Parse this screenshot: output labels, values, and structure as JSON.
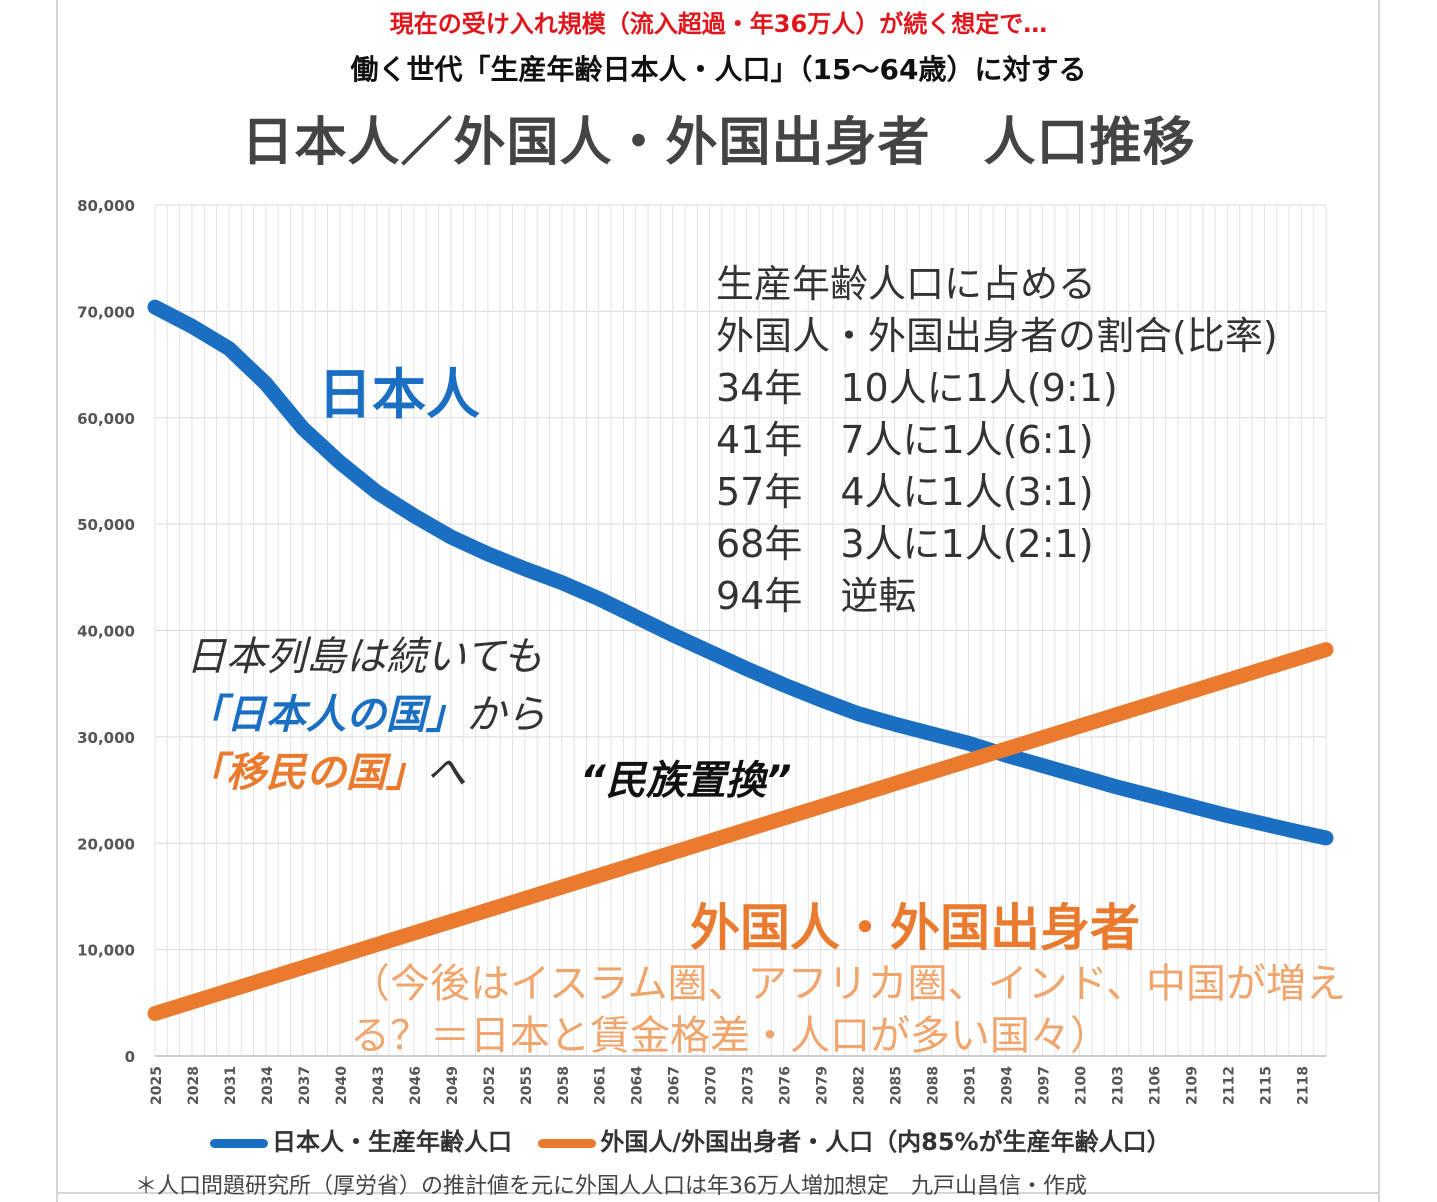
{
  "title_line1": "現在の受け入れ規模（流入超過・年36万人）が続く想定で…",
  "title_line2": "働く世代「生産年齢日本人・人口」（15〜64歳）に対する",
  "title_main": "日本人／外国人・外国出身者　人口推移",
  "annotations": {
    "japanese_label": "日本人",
    "foreign_label": "外国人・外国出身者",
    "foreign_note": "（今後はイスラム圏、アフリカ圏、インド、中国が増える？＝日本と賃金格差・人口が多い国々）",
    "ratio_lines": [
      "生産年齢人口に占める",
      "外国人・外国出身者の割合(比率)",
      "34年　10人に1人(9:1)",
      "41年　7人に1人(6:1)",
      "57年　4人に1人(3:1)",
      "68年　3人に1人(2:1)",
      "94年　逆転"
    ],
    "italic_line1": "日本列島は続いても",
    "italic_line2_quote": "「日本人の国」",
    "italic_line2_rest": "から",
    "italic_line3_quote": "「移民の国」",
    "italic_line3_rest": "へ",
    "replacement": "“民族置換”"
  },
  "footnote": "＊人口問題研究所（厚労省）の推計値を元に外国人人口は年36万人増加想定　九戸山昌信・作成",
  "colors": {
    "japanese": "#1b6fc2",
    "foreign": "#e97a2e",
    "title_red": "#e0161c"
  },
  "chart_data": {
    "type": "line",
    "ylim": [
      0,
      80000
    ],
    "yticks": [
      "0",
      "10,000",
      "20,000",
      "30,000",
      "40,000",
      "50,000",
      "60,000",
      "70,000",
      "80,000"
    ],
    "x_tick_labels": [
      "2025",
      "2028",
      "2031",
      "2034",
      "2037",
      "2040",
      "2043",
      "2046",
      "2049",
      "2052",
      "2055",
      "2058",
      "2061",
      "2064",
      "2067",
      "2070",
      "2073",
      "2076",
      "2079",
      "2082",
      "2085",
      "2088",
      "2091",
      "2094",
      "2097",
      "2100",
      "2103",
      "2106",
      "2109",
      "2112",
      "2115",
      "2118"
    ],
    "xlim": [
      2025,
      2120
    ],
    "grid": true,
    "legend_position": "bottom",
    "series": [
      {
        "name": "日本人・生産年齢人口",
        "color": "#1b6fc2",
        "x": [
          2025,
          2028,
          2031,
          2034,
          2037,
          2040,
          2043,
          2046,
          2049,
          2052,
          2055,
          2058,
          2061,
          2064,
          2067,
          2070,
          2073,
          2076,
          2079,
          2082,
          2085,
          2088,
          2091,
          2094,
          2097,
          2100,
          2103,
          2106,
          2109,
          2112,
          2115,
          2118,
          2120
        ],
        "values": [
          70400,
          68600,
          66500,
          63200,
          59000,
          55800,
          53000,
          50800,
          48800,
          47200,
          45800,
          44500,
          43000,
          41300,
          39600,
          38000,
          36400,
          34900,
          33500,
          32200,
          31200,
          30300,
          29400,
          28300,
          27300,
          26300,
          25300,
          24400,
          23500,
          22600,
          21800,
          21000,
          20500
        ]
      },
      {
        "name": "外国人/外国出身者・人口（内85%が生産年齢人口）",
        "color": "#e97a2e",
        "x": [
          2025,
          2120
        ],
        "values": [
          4000,
          38200
        ]
      }
    ]
  }
}
